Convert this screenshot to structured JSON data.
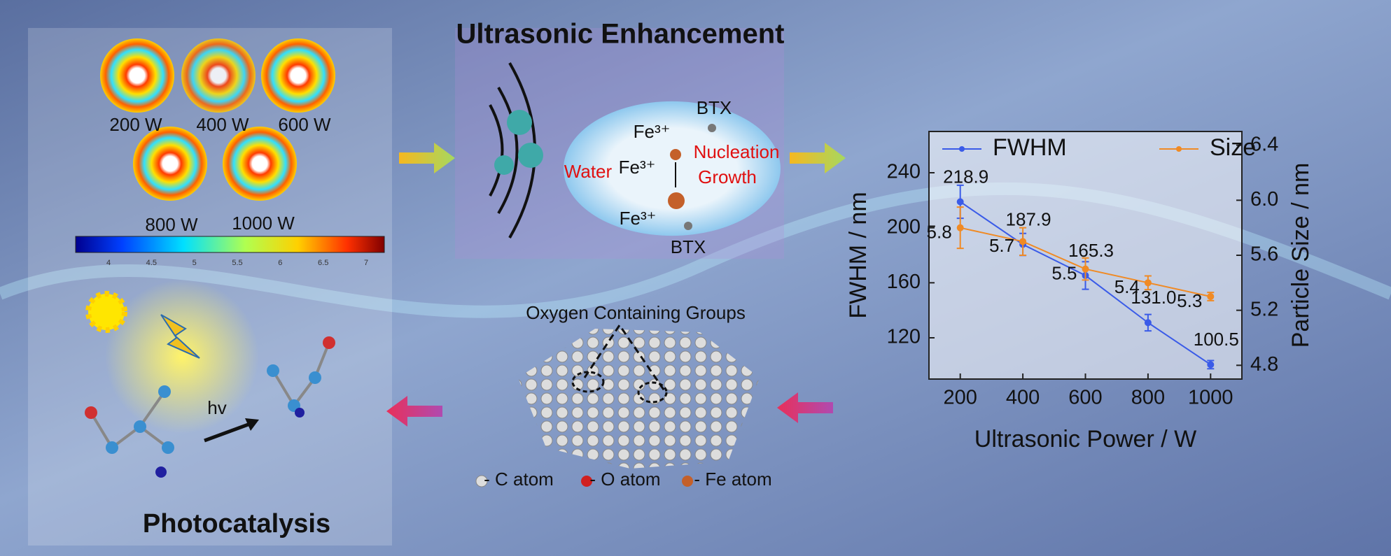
{
  "header": {
    "title": "Ultrasonic Enhancement"
  },
  "heatmap": {
    "labels": [
      "200 W",
      "400 W",
      "600 W",
      "800 W",
      "1000 W"
    ]
  },
  "colorbar": {
    "ticks": [
      4,
      4.5,
      5,
      5.5,
      6,
      6.5,
      7
    ]
  },
  "mechanism": {
    "btx": [
      "BTX",
      "BTX"
    ],
    "fe": [
      "Fe³⁺",
      "Fe³⁺",
      "Fe³⁺"
    ],
    "water": "Water",
    "nucleation": "Nucleation",
    "growth": "Growth"
  },
  "graphene": {
    "title": "Oxygen Containing Groups",
    "legend": [
      "- C atom",
      "- O atom",
      "- Fe atom"
    ]
  },
  "photocatalysis": {
    "title": "Photocatalysis",
    "hv": "hv"
  },
  "chart_data": {
    "type": "line",
    "x": [
      200,
      400,
      600,
      800,
      1000
    ],
    "xlim": [
      100,
      1100
    ],
    "xticks": [
      200,
      400,
      600,
      800,
      1000
    ],
    "ylim": [
      90,
      270
    ],
    "yticks": [
      120,
      160,
      200,
      240
    ],
    "y2lim": [
      4.7,
      6.5
    ],
    "y2ticks": [
      4.8,
      5.2,
      5.6,
      {
        "value": 6,
        "label": "6.0"
      },
      6.4
    ],
    "xlabel": "Ultrasonic Power / W",
    "ylabel": "FWHM / nm",
    "y2label": "Particle Size  / nm",
    "series": [
      {
        "name": "FWHM",
        "color": "#3a5be8",
        "values": [
          218.9,
          187.9,
          165.3,
          131.0,
          100.5
        ],
        "value_labels": [
          "218.9",
          "187.9",
          "165.3",
          "131.0",
          "100.5"
        ],
        "errors": [
          12,
          8,
          10,
          6,
          3
        ]
      },
      {
        "name": "Size",
        "color": "#f08a24",
        "axis": "y2",
        "values": [
          5.8,
          5.7,
          5.5,
          5.4,
          5.3
        ],
        "errors": [
          0.15,
          0.1,
          0.08,
          0.05,
          0.03
        ]
      }
    ]
  }
}
